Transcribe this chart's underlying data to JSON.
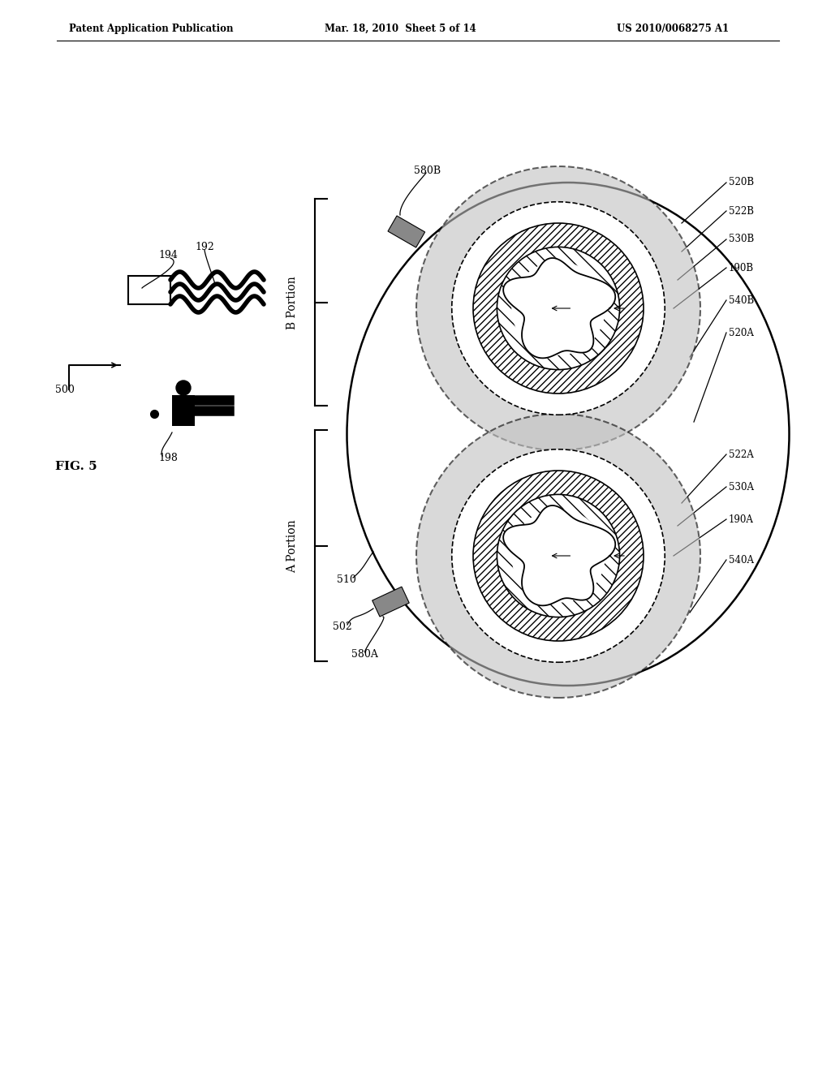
{
  "title_left": "Patent Application Publication",
  "title_mid": "Mar. 18, 2010  Sheet 5 of 14",
  "title_right": "US 2010/0068275 A1",
  "fig_label": "FIG. 5",
  "ref_500": "500",
  "ref_502": "502",
  "ref_510": "510",
  "ref_192": "192",
  "ref_194": "194",
  "ref_198": "198",
  "ref_520A": "520A",
  "ref_520B": "520B",
  "ref_522A": "522A",
  "ref_522B": "522B",
  "ref_530A": "530A",
  "ref_530B": "530B",
  "ref_540A": "540A",
  "ref_540B": "540B",
  "ref_190A": "190A",
  "ref_190B": "190B",
  "ref_580A": "580A",
  "ref_580B": "580B",
  "label_B_Portion": "B Portion",
  "label_A_Portion": "A Portion",
  "bg_color": "#ffffff",
  "line_color": "#000000",
  "stipple_color": "#c8c8c8",
  "hatch_color": "#aaaaaa"
}
